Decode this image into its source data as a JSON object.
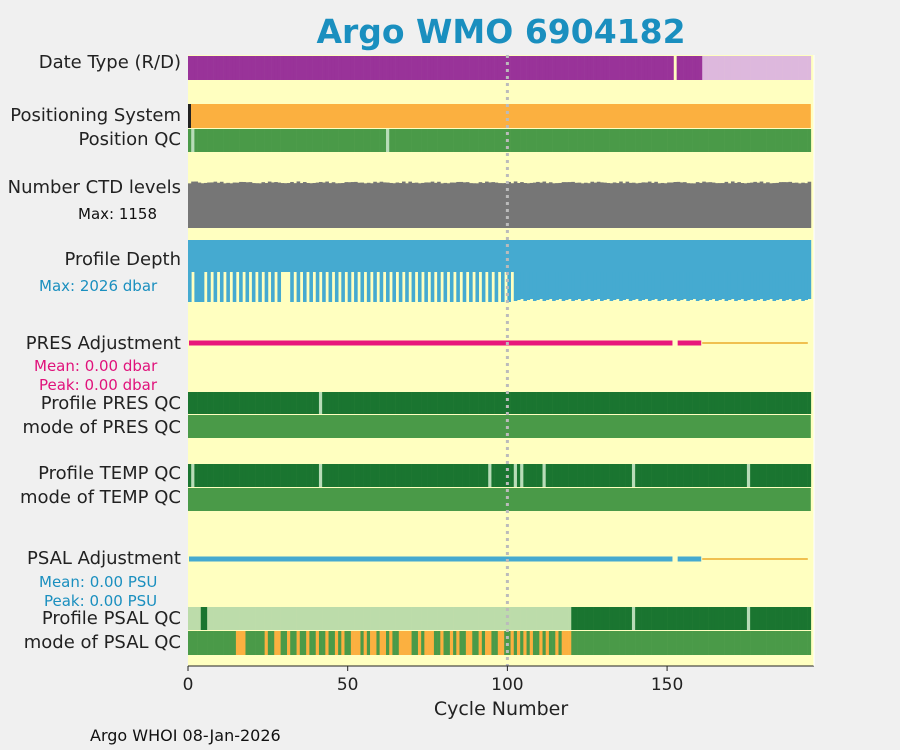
{
  "title": "Argo WMO 6904182",
  "footer": "Argo WHOI 08-Jan-2026",
  "colors": {
    "background": "#ffffc0",
    "dataTypeR": "#993399",
    "dataTypeD": "#ddb8dd",
    "positioning": "#fbb040",
    "qcGood": "#4a9a48",
    "qcDark": "#1a7530",
    "qcLight": "#bcdcaa",
    "qcGap": "#b8dcb8",
    "qcBad": "#fbb040",
    "ctd": "#767676",
    "depth": "#45aad0",
    "presAdj": "#e8177b",
    "psalAdj": "#45aad0",
    "adjThin": "#f0c050",
    "grid": "#bbbbbb"
  },
  "labels": {
    "data_type": "Date Type (R/D)",
    "positioning": "Positioning System",
    "position_qc": "Position QC",
    "ctd_levels": "Number CTD levels",
    "ctd_max": "Max: 1158",
    "profile_depth": "Profile Depth",
    "depth_max": "Max: 2026 dbar",
    "pres_adj": "PRES Adjustment",
    "pres_mean": "Mean: 0.00 dbar",
    "pres_peak": "Peak: 0.00 dbar",
    "profile_pres_qc": "Profile PRES QC",
    "mode_pres_qc": "mode of PRES QC",
    "profile_temp_qc": "Profile TEMP QC",
    "mode_temp_qc": "mode of TEMP QC",
    "psal_adj": "PSAL Adjustment",
    "psal_mean": "Mean: 0.00 PSU",
    "psal_peak": "Peak: 0.00 PSU",
    "profile_psal_qc": "Profile PSAL QC",
    "mode_psal_qc": "mode of PSAL QC"
  },
  "chart_data": {
    "type": "timeline",
    "title": "Argo WMO 6904182",
    "xlabel": "Cycle Number",
    "xlim": [
      0,
      196
    ],
    "xticks": [
      0,
      50,
      100,
      150
    ],
    "vline_at": 100,
    "n_cycles": 195,
    "data_mode": {
      "realtime_until": 161,
      "delayed_from": 161,
      "gap_at": [
        152
      ]
    },
    "position_qc_gaps": [
      1,
      62
    ],
    "ctd_levels_max": 1158,
    "profile_depth_max_dbar": 2026,
    "shallow_profile_range": [
      1,
      102
    ],
    "pres_adjustment": {
      "mean": 0.0,
      "peak": 0.0,
      "thick_until": 161,
      "gap_at": [
        152
      ]
    },
    "psal_adjustment": {
      "mean": 0.0,
      "peak": 0.0,
      "thick_until": 161,
      "gap_at": [
        152
      ]
    },
    "pres_qc_gaps": [
      41
    ],
    "temp_qc_gaps": [
      1,
      41,
      94,
      102,
      104,
      111,
      139,
      175
    ],
    "psal_qc_light_range": [
      6,
      120
    ],
    "psal_qc_gaps": [
      139,
      175
    ],
    "psal_mode_bad_cycles": [
      15,
      16,
      17,
      24,
      27,
      28,
      31,
      34,
      37,
      40,
      43,
      46,
      48,
      51,
      52,
      53,
      55,
      57,
      58,
      60,
      61,
      63,
      66,
      67,
      68,
      69,
      72,
      74,
      75,
      76,
      79,
      82,
      84,
      87,
      88,
      91,
      93,
      94,
      97,
      98,
      101,
      103,
      105,
      107,
      110,
      112,
      115,
      117,
      118,
      119
    ]
  }
}
